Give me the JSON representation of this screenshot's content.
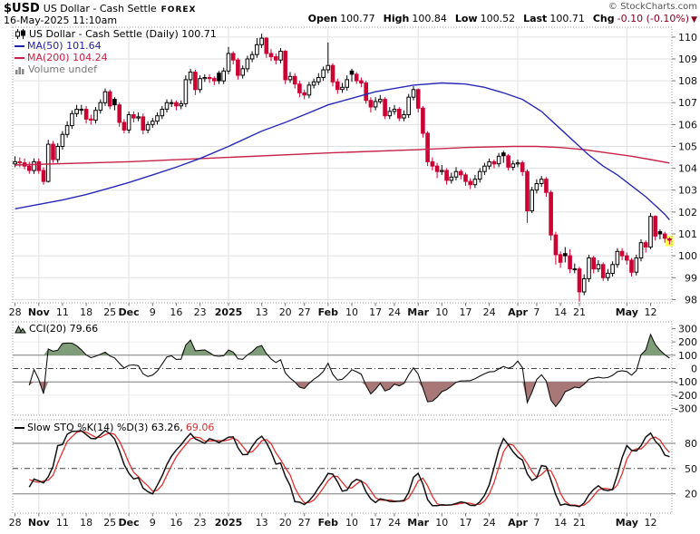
{
  "header": {
    "symbol": "$USD",
    "title": "US Dollar - Cash Settle",
    "exchange": "FOREX",
    "datetime": "16-May-2025 11:10am",
    "copyright": "© StockCharts.com",
    "quote": {
      "open_label": "Open",
      "open": "100.77",
      "high_label": "High",
      "high": "100.84",
      "low_label": "Low",
      "low": "100.52",
      "last_label": "Last",
      "last": "100.71",
      "chg_label": "Chg",
      "chg": "-0.10 (-0.10%)",
      "chg_arrow": "▼"
    }
  },
  "legend_main": {
    "series": "US Dollar - Cash Settle (Daily) 100.71",
    "ma50": "MA(50) 101.64",
    "ma200": "MA(200) 104.24",
    "volume": "Volume undef"
  },
  "legend_cci": {
    "label": "CCI(20) 79.66"
  },
  "legend_sto": {
    "label": "Slow STO %K(14) %D(3) 63.26,",
    "d_value": "69.06"
  },
  "colors": {
    "up": "#000000",
    "down": "#cc0033",
    "ma50": "#2929b8",
    "ma200": "#c7234a",
    "cci_fill_up": "#7f9d78",
    "cci_fill_dn": "#a87878",
    "sto_k": "#111111",
    "sto_d": "#e03030",
    "grid": "#e0e0e0",
    "grid_soft": "#ececec",
    "grid_strong": "#7a7a7a",
    "dashdot": "#444444",
    "border": "#999999",
    "tick": "#777777",
    "axis_text": "#111111",
    "highlight": "#ffff4d"
  },
  "chart_data": {
    "type": "candlestick",
    "title": "US Dollar - Cash Settle (Daily)",
    "last_close": 100.71,
    "price_axis": {
      "min": 97.85,
      "max": 110.45,
      "ticks": [
        98,
        99,
        100,
        101,
        102,
        103,
        104,
        105,
        106,
        107,
        108,
        109,
        110
      ]
    },
    "x_ticks": [
      [
        0,
        "28",
        0
      ],
      [
        5,
        "Nov",
        1
      ],
      [
        10,
        "11",
        0
      ],
      [
        15,
        "18",
        0
      ],
      [
        20,
        "25",
        0
      ],
      [
        24,
        "Dec",
        1
      ],
      [
        29,
        "9",
        0
      ],
      [
        34,
        "16",
        0
      ],
      [
        39,
        "23",
        0
      ],
      [
        45,
        "2025",
        1
      ],
      [
        52,
        "13",
        0
      ],
      [
        57,
        "20",
        0
      ],
      [
        61,
        "27",
        0
      ],
      [
        66,
        "Feb",
        1
      ],
      [
        71,
        "10",
        0
      ],
      [
        76,
        "17",
        0
      ],
      [
        80,
        "24",
        0
      ],
      [
        85,
        "Mar",
        1
      ],
      [
        90,
        "10",
        0
      ],
      [
        95,
        "17",
        0
      ],
      [
        100,
        "24",
        0
      ],
      [
        106,
        "Apr",
        1
      ],
      [
        110,
        "7",
        0
      ],
      [
        115,
        "14",
        0
      ],
      [
        119,
        "21",
        0
      ],
      [
        129,
        "May",
        1
      ],
      [
        134,
        "12",
        0
      ]
    ],
    "month_grid_idx": [
      5,
      24,
      45,
      66,
      85,
      106,
      129
    ],
    "candles": [
      [
        104.2,
        104.55,
        104.05,
        104.3
      ],
      [
        104.3,
        104.5,
        104.05,
        104.25
      ],
      [
        104.25,
        104.45,
        103.95,
        104.1
      ],
      [
        104.1,
        104.3,
        103.75,
        103.9
      ],
      [
        103.9,
        104.45,
        103.75,
        104.3
      ],
      [
        104.3,
        104.45,
        103.75,
        103.9
      ],
      [
        103.9,
        104.05,
        103.25,
        103.4
      ],
      [
        103.4,
        105.3,
        103.35,
        105.1
      ],
      [
        105.1,
        105.25,
        104.25,
        104.4
      ],
      [
        104.4,
        105.15,
        104.25,
        105.0
      ],
      [
        105.0,
        105.7,
        104.85,
        105.55
      ],
      [
        105.55,
        106.15,
        105.4,
        105.95
      ],
      [
        105.95,
        106.65,
        105.8,
        106.5
      ],
      [
        106.5,
        106.9,
        106.35,
        106.7
      ],
      [
        106.7,
        106.9,
        106.45,
        106.7
      ],
      [
        106.7,
        106.85,
        106.05,
        106.25
      ],
      [
        106.25,
        106.45,
        106.0,
        106.2
      ],
      [
        106.2,
        106.8,
        106.05,
        106.65
      ],
      [
        106.65,
        107.15,
        106.5,
        107.0
      ],
      [
        107.0,
        107.65,
        106.85,
        107.5
      ],
      [
        107.5,
        107.6,
        106.7,
        106.85
      ],
      [
        107.15,
        107.25,
        106.65,
        106.9
      ],
      [
        106.9,
        107.0,
        105.9,
        106.1
      ],
      [
        106.1,
        106.25,
        105.6,
        105.75
      ],
      [
        105.75,
        106.6,
        105.6,
        106.45
      ],
      [
        106.45,
        106.6,
        106.1,
        106.3
      ],
      [
        106.3,
        106.55,
        106.15,
        106.35
      ],
      [
        106.35,
        106.5,
        105.55,
        105.75
      ],
      [
        105.75,
        106.15,
        105.6,
        106.0
      ],
      [
        106.0,
        106.3,
        105.85,
        106.15
      ],
      [
        106.15,
        106.55,
        106.0,
        106.4
      ],
      [
        106.4,
        106.85,
        106.25,
        106.7
      ],
      [
        106.7,
        107.15,
        106.55,
        107.0
      ],
      [
        107.0,
        107.15,
        106.8,
        107.0
      ],
      [
        107.0,
        107.1,
        106.65,
        106.85
      ],
      [
        106.85,
        107.1,
        106.7,
        106.95
      ],
      [
        106.95,
        108.25,
        106.8,
        108.05
      ],
      [
        108.05,
        108.55,
        107.85,
        108.4
      ],
      [
        108.4,
        108.5,
        107.35,
        107.6
      ],
      [
        107.6,
        108.25,
        107.45,
        108.1
      ],
      [
        108.1,
        108.3,
        107.95,
        108.15
      ],
      [
        108.15,
        108.3,
        107.9,
        108.1
      ],
      [
        108.1,
        108.2,
        107.8,
        108.0
      ],
      [
        108.35,
        108.45,
        107.85,
        108.0
      ],
      [
        108.0,
        108.6,
        107.85,
        108.45
      ],
      [
        108.45,
        109.55,
        108.3,
        109.25
      ],
      [
        109.25,
        109.35,
        108.75,
        108.95
      ],
      [
        108.95,
        109.05,
        108.05,
        108.25
      ],
      [
        108.25,
        108.7,
        108.1,
        108.55
      ],
      [
        108.55,
        109.15,
        108.4,
        109.0
      ],
      [
        109.0,
        109.35,
        108.85,
        109.2
      ],
      [
        109.2,
        109.95,
        109.05,
        109.65
      ],
      [
        109.65,
        110.15,
        109.5,
        109.95
      ],
      [
        109.95,
        110.0,
        109.05,
        109.25
      ],
      [
        109.25,
        109.45,
        108.9,
        109.1
      ],
      [
        109.1,
        109.25,
        108.75,
        108.95
      ],
      [
        108.95,
        109.5,
        108.8,
        109.35
      ],
      [
        109.35,
        109.4,
        107.85,
        108.05
      ],
      [
        108.05,
        108.4,
        107.9,
        108.2
      ],
      [
        108.2,
        108.35,
        107.65,
        107.85
      ],
      [
        107.85,
        108.0,
        107.25,
        107.45
      ],
      [
        107.45,
        107.6,
        107.15,
        107.35
      ],
      [
        107.35,
        107.95,
        107.2,
        107.8
      ],
      [
        107.8,
        108.1,
        107.65,
        107.95
      ],
      [
        107.95,
        108.35,
        107.8,
        108.15
      ],
      [
        108.15,
        108.65,
        108.0,
        108.5
      ],
      [
        108.5,
        109.75,
        108.35,
        108.7
      ],
      [
        108.7,
        108.8,
        107.75,
        107.95
      ],
      [
        107.95,
        108.1,
        107.4,
        107.6
      ],
      [
        107.6,
        107.9,
        107.45,
        107.7
      ],
      [
        107.7,
        108.25,
        107.55,
        108.05
      ],
      [
        108.45,
        108.55,
        107.95,
        108.3
      ],
      [
        108.3,
        108.4,
        107.85,
        108.0
      ],
      [
        108.0,
        108.15,
        107.7,
        107.9
      ],
      [
        107.9,
        108.0,
        106.95,
        107.1
      ],
      [
        107.1,
        107.25,
        106.55,
        106.8
      ],
      [
        106.8,
        107.25,
        106.65,
        107.05
      ],
      [
        107.05,
        107.35,
        106.95,
        107.15
      ],
      [
        107.15,
        107.25,
        106.25,
        106.4
      ],
      [
        106.4,
        106.8,
        106.25,
        106.6
      ],
      [
        106.6,
        106.9,
        106.45,
        106.7
      ],
      [
        106.7,
        106.8,
        106.15,
        106.3
      ],
      [
        106.3,
        106.65,
        106.15,
        106.45
      ],
      [
        106.45,
        107.4,
        106.3,
        107.25
      ],
      [
        107.25,
        107.75,
        107.1,
        107.6
      ],
      [
        107.6,
        107.65,
        106.55,
        106.75
      ],
      [
        106.75,
        106.85,
        105.4,
        105.6
      ],
      [
        105.6,
        105.7,
        104.1,
        104.3
      ],
      [
        104.3,
        104.5,
        103.9,
        104.1
      ],
      [
        104.1,
        104.25,
        103.55,
        103.85
      ],
      [
        103.85,
        104.15,
        103.7,
        103.9
      ],
      [
        103.9,
        104.0,
        103.25,
        103.45
      ],
      [
        103.45,
        103.8,
        103.3,
        103.6
      ],
      [
        103.6,
        104.05,
        103.45,
        103.85
      ],
      [
        103.85,
        103.95,
        103.5,
        103.7
      ],
      [
        103.7,
        103.8,
        103.2,
        103.4
      ],
      [
        103.4,
        103.55,
        103.05,
        103.25
      ],
      [
        103.25,
        103.7,
        103.1,
        103.5
      ],
      [
        103.5,
        104.0,
        103.35,
        103.85
      ],
      [
        103.85,
        104.25,
        103.7,
        104.1
      ],
      [
        104.1,
        104.45,
        103.95,
        104.3
      ],
      [
        104.3,
        104.4,
        104.0,
        104.2
      ],
      [
        104.2,
        104.7,
        104.05,
        104.55
      ],
      [
        104.7,
        104.8,
        104.25,
        104.57
      ],
      [
        104.57,
        104.65,
        103.9,
        104.05
      ],
      [
        104.05,
        104.35,
        103.9,
        104.2
      ],
      [
        104.2,
        104.4,
        104.05,
        104.25
      ],
      [
        104.25,
        104.35,
        103.65,
        103.85
      ],
      [
        103.85,
        103.95,
        101.5,
        102.05
      ],
      [
        102.05,
        103.15,
        101.95,
        103.0
      ],
      [
        103.0,
        103.5,
        102.85,
        103.3
      ],
      [
        103.3,
        103.65,
        103.15,
        103.5
      ],
      [
        103.5,
        103.6,
        102.7,
        102.9
      ],
      [
        102.9,
        103.0,
        100.7,
        100.95
      ],
      [
        100.95,
        101.1,
        99.6,
        100.05
      ],
      [
        100.05,
        100.2,
        99.45,
        99.7
      ],
      [
        100.1,
        100.4,
        99.7,
        100.0
      ],
      [
        100.0,
        100.3,
        99.2,
        99.4
      ],
      [
        99.4,
        99.65,
        99.2,
        99.4
      ],
      [
        99.4,
        99.5,
        97.9,
        98.35
      ],
      [
        98.35,
        99.15,
        98.2,
        98.95
      ],
      [
        98.95,
        100.05,
        98.8,
        99.9
      ],
      [
        99.9,
        100.0,
        99.2,
        99.4
      ],
      [
        99.4,
        99.8,
        99.25,
        99.6
      ],
      [
        99.6,
        99.7,
        98.85,
        99.0
      ],
      [
        99.0,
        99.4,
        98.85,
        99.2
      ],
      [
        99.2,
        99.75,
        99.05,
        99.6
      ],
      [
        99.6,
        100.35,
        99.45,
        100.2
      ],
      [
        100.2,
        100.35,
        99.8,
        100.0
      ],
      [
        100.0,
        100.15,
        99.6,
        99.8
      ],
      [
        99.8,
        99.9,
        99.05,
        99.25
      ],
      [
        99.25,
        100.05,
        99.1,
        99.9
      ],
      [
        99.9,
        100.75,
        99.75,
        100.6
      ],
      [
        100.6,
        100.7,
        100.15,
        100.4
      ],
      [
        100.4,
        101.95,
        100.3,
        101.8
      ],
      [
        101.8,
        101.85,
        100.7,
        100.9
      ],
      [
        101.1,
        101.2,
        100.75,
        101.0
      ],
      [
        101.0,
        101.1,
        100.6,
        100.8
      ],
      [
        100.77,
        100.84,
        100.52,
        100.71
      ]
    ],
    "ma50": [
      [
        0,
        102.15
      ],
      [
        5,
        102.35
      ],
      [
        10,
        102.55
      ],
      [
        15,
        102.8
      ],
      [
        20,
        103.1
      ],
      [
        24,
        103.35
      ],
      [
        29,
        103.7
      ],
      [
        34,
        104.05
      ],
      [
        39,
        104.45
      ],
      [
        45,
        105.0
      ],
      [
        52,
        105.7
      ],
      [
        57,
        106.1
      ],
      [
        61,
        106.45
      ],
      [
        66,
        106.9
      ],
      [
        71,
        107.2
      ],
      [
        76,
        107.5
      ],
      [
        80,
        107.65
      ],
      [
        84,
        107.8
      ],
      [
        90,
        107.9
      ],
      [
        95,
        107.85
      ],
      [
        99,
        107.7
      ],
      [
        103,
        107.45
      ],
      [
        107,
        107.15
      ],
      [
        111,
        106.6
      ],
      [
        115,
        105.8
      ],
      [
        118,
        105.2
      ],
      [
        121,
        104.6
      ],
      [
        124,
        104.1
      ],
      [
        127,
        103.7
      ],
      [
        130,
        103.2
      ],
      [
        133,
        102.7
      ],
      [
        135,
        102.3
      ],
      [
        137,
        101.9
      ],
      [
        138,
        101.64
      ]
    ],
    "ma200": [
      [
        0,
        104.15
      ],
      [
        24,
        104.3
      ],
      [
        45,
        104.5
      ],
      [
        66,
        104.7
      ],
      [
        85,
        104.85
      ],
      [
        95,
        104.95
      ],
      [
        105,
        105.0
      ],
      [
        110,
        105.0
      ],
      [
        115,
        104.95
      ],
      [
        120,
        104.85
      ],
      [
        125,
        104.7
      ],
      [
        130,
        104.55
      ],
      [
        134,
        104.4
      ],
      [
        138,
        104.24
      ]
    ],
    "cci": {
      "name": "CCI(20)",
      "last": 79.66,
      "axis": [
        300,
        200,
        100,
        0,
        -100,
        -200,
        -300
      ],
      "upper": 100,
      "lower": -100,
      "range": 350
    },
    "sto": {
      "name": "Slow STO %K(14) %D(3)",
      "k_last": 63.26,
      "d_last": 69.06,
      "axis": [
        80,
        50,
        20
      ],
      "upper": 80,
      "mid": 50,
      "lower": 20
    }
  }
}
